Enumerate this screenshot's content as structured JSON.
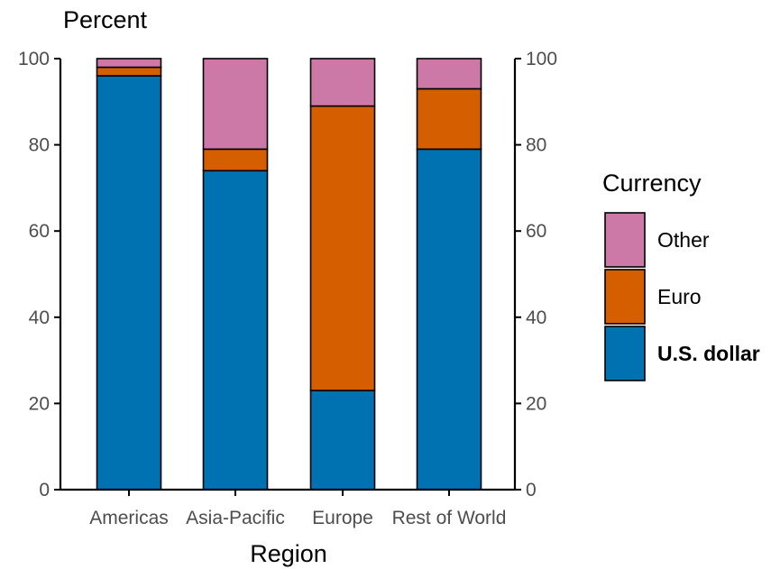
{
  "chart_data": {
    "type": "bar",
    "stacked": true,
    "categories": [
      "Americas",
      "Asia-Pacific",
      "Europe",
      "Rest of World"
    ],
    "series": [
      {
        "name": "U.S. dollar",
        "values": [
          96,
          74,
          23,
          79
        ],
        "color": "#0072B2"
      },
      {
        "name": "Euro",
        "values": [
          2,
          5,
          66,
          14
        ],
        "color": "#D55E00"
      },
      {
        "name": "Other",
        "values": [
          2,
          21,
          11,
          7
        ],
        "color": "#CC79A7"
      }
    ],
    "title": "",
    "ylabel": "Percent",
    "xlabel": "Region",
    "ylim": [
      0,
      100
    ],
    "yticks": [
      0,
      20,
      40,
      60,
      80,
      100
    ],
    "grid": false,
    "secondary_y_axis": true,
    "legend": {
      "title": "Currency",
      "placement": "right",
      "entries": [
        "Other",
        "Euro",
        "U.S. dollar"
      ],
      "bold_entry": "U.S. dollar"
    }
  }
}
